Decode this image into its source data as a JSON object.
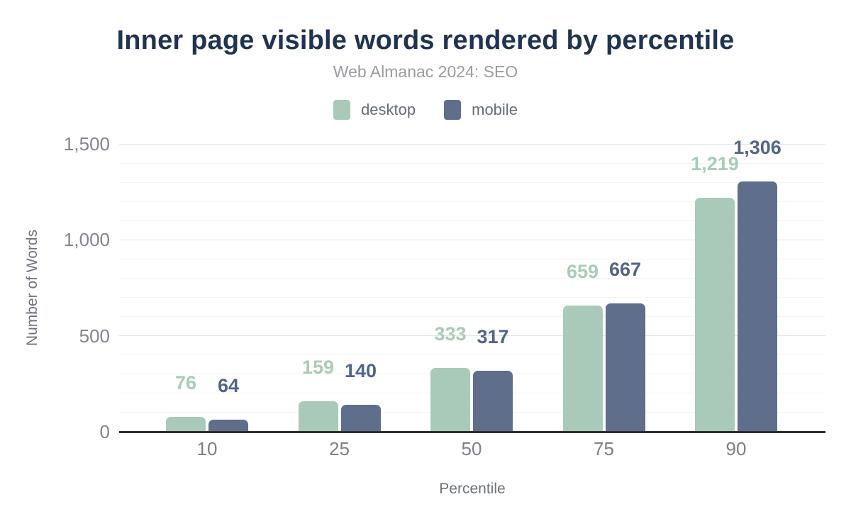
{
  "chart_data": {
    "type": "bar",
    "title": "Inner page visible words rendered by percentile",
    "subtitle": "Web Almanac 2024: SEO",
    "xlabel": "Percentile",
    "ylabel": "Number of Words",
    "categories": [
      "10",
      "25",
      "50",
      "75",
      "90"
    ],
    "series": [
      {
        "name": "desktop",
        "color": "#a9cab9",
        "label_color": "#a8ccb8",
        "values": [
          76,
          159,
          333,
          659,
          1219
        ],
        "labels": [
          "76",
          "159",
          "333",
          "659",
          "1,219"
        ]
      },
      {
        "name": "mobile",
        "color": "#5f6e8b",
        "label_color": "#53648a",
        "values": [
          64,
          140,
          317,
          667,
          1306
        ],
        "labels": [
          "64",
          "140",
          "317",
          "667",
          "1,306"
        ]
      }
    ],
    "ylim": [
      0,
      1500
    ],
    "yticks": [
      {
        "value": 0,
        "label": "0"
      },
      {
        "value": 500,
        "label": "500"
      },
      {
        "value": 1000,
        "label": "1,000"
      },
      {
        "value": 1500,
        "label": "1,500"
      }
    ],
    "grid": {
      "minor_step": 100,
      "major_step": 500,
      "minor_on": true,
      "major_on": true
    },
    "legend_position": "top",
    "colors": {
      "title": "#203353",
      "subtitle": "#9b9ba0",
      "axis_baseline": "#2f2f2f",
      "tick_text": "#81868d",
      "axis_title_text": "#6d737b"
    }
  }
}
